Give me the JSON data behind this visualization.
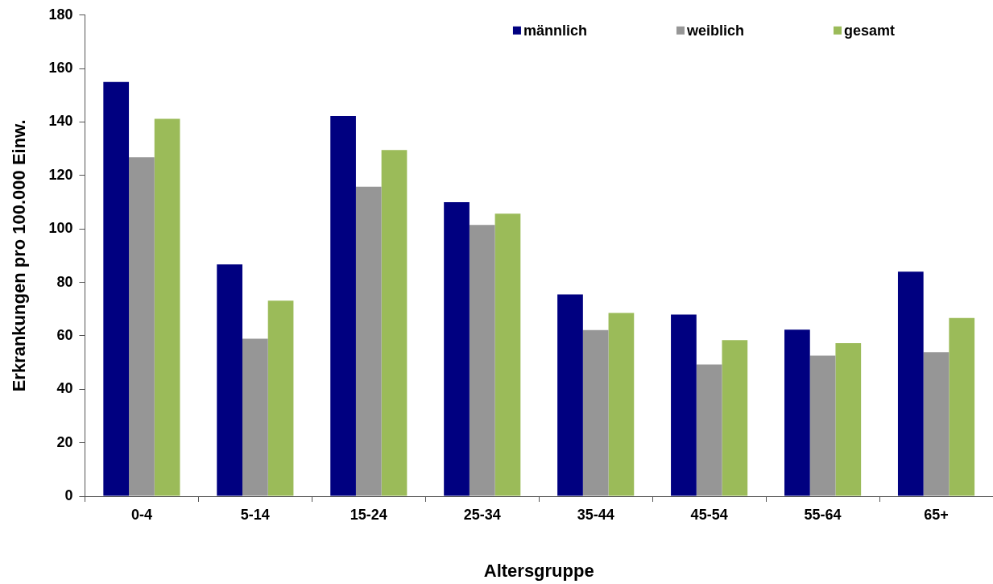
{
  "chart_data": {
    "type": "bar",
    "xlabel": "Altersgruppe",
    "ylabel": "Erkrankungen pro 100.000 Einw.",
    "categories": [
      "0-4",
      "5-14",
      "15-24",
      "25-34",
      "35-44",
      "45-54",
      "55-64",
      "65+"
    ],
    "series": [
      {
        "name": "männlich",
        "color": "#000080",
        "values": [
          155,
          86.7,
          142.3,
          110,
          75.5,
          68,
          62.3,
          84
        ]
      },
      {
        "name": "weiblich",
        "color": "#969696",
        "values": [
          126.8,
          58.9,
          115.8,
          101.5,
          62.2,
          49.3,
          52.6,
          53.9
        ]
      },
      {
        "name": "gesamt",
        "color": "#9bbb59",
        "values": [
          141.2,
          73.2,
          129.5,
          105.7,
          68.6,
          58.4,
          57.3,
          66.7
        ]
      }
    ],
    "ylim": [
      0,
      180
    ],
    "yticks": [
      0,
      20,
      40,
      60,
      80,
      100,
      120,
      140,
      160,
      180
    ],
    "grid": false,
    "legend": "top right"
  }
}
